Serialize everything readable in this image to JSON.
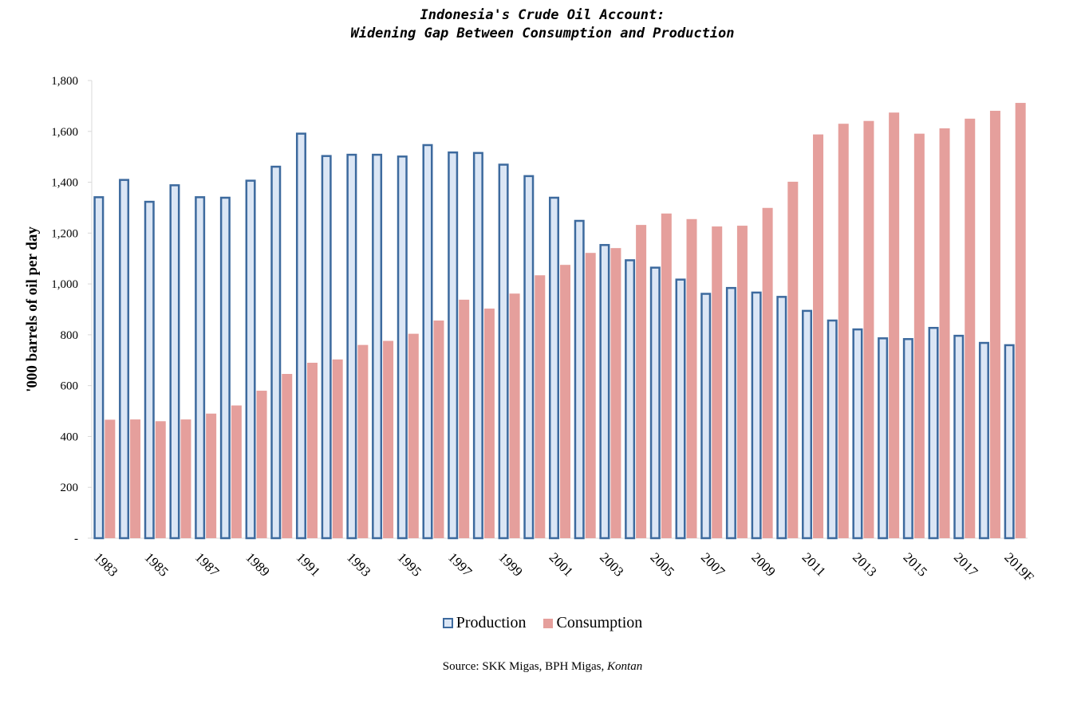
{
  "chart_data": {
    "type": "bar",
    "title_line1": "Indonesia's Crude Oil Account:",
    "title_line2": "Widening Gap Between Consumption and Production",
    "ylabel": "'000 barrels of oil per day",
    "ylim": [
      0,
      1800
    ],
    "yticks": [
      0,
      200,
      400,
      600,
      800,
      1000,
      1200,
      1400,
      1600,
      1800
    ],
    "ytick_labels": [
      "-",
      "200",
      "400",
      "600",
      "800",
      "1,000",
      "1,200",
      "1,400",
      "1,600",
      "1,800"
    ],
    "categories": [
      "1983",
      "1984",
      "1985",
      "1986",
      "1987",
      "1988",
      "1989",
      "1990",
      "1991",
      "1992",
      "1993",
      "1994",
      "1995",
      "1996",
      "1997",
      "1998",
      "1999",
      "2000",
      "2001",
      "2002",
      "2003",
      "2004",
      "2005",
      "2006",
      "2007",
      "2008",
      "2009",
      "2010",
      "2011",
      "2012",
      "2013",
      "2014",
      "2015",
      "2016",
      "2017",
      "2018",
      "2019F"
    ],
    "xtick_labels": [
      "1983",
      "1985",
      "1987",
      "1989",
      "1991",
      "1993",
      "1995",
      "1997",
      "1999",
      "2001",
      "2003",
      "2005",
      "2007",
      "2009",
      "2011",
      "2013",
      "2015",
      "2017",
      "2019F"
    ],
    "series": [
      {
        "name": "Production",
        "color": "#3d6a9e",
        "fill": "#dbe6f5",
        "values": [
          1345,
          1413,
          1327,
          1392,
          1345,
          1343,
          1410,
          1465,
          1595,
          1507,
          1512,
          1512,
          1505,
          1550,
          1521,
          1519,
          1473,
          1428,
          1343,
          1252,
          1157,
          1097,
          1068,
          1021,
          965,
          988,
          970,
          953,
          898,
          860,
          825,
          790,
          787,
          831,
          800,
          772,
          763
        ]
      },
      {
        "name": "Consumption",
        "color": "#e59f9c",
        "values": [
          466,
          467,
          460,
          467,
          490,
          522,
          580,
          646,
          690,
          703,
          760,
          776,
          804,
          856,
          938,
          903,
          962,
          1034,
          1075,
          1122,
          1141,
          1232,
          1277,
          1255,
          1226,
          1229,
          1299,
          1402,
          1588,
          1630,
          1641,
          1674,
          1591,
          1612,
          1650,
          1681,
          1712
        ]
      }
    ],
    "grid": false,
    "legend_position": "bottom-center"
  },
  "source_prefix": "Source: SKK Migas, BPH Migas, ",
  "source_italic": "Kontan"
}
